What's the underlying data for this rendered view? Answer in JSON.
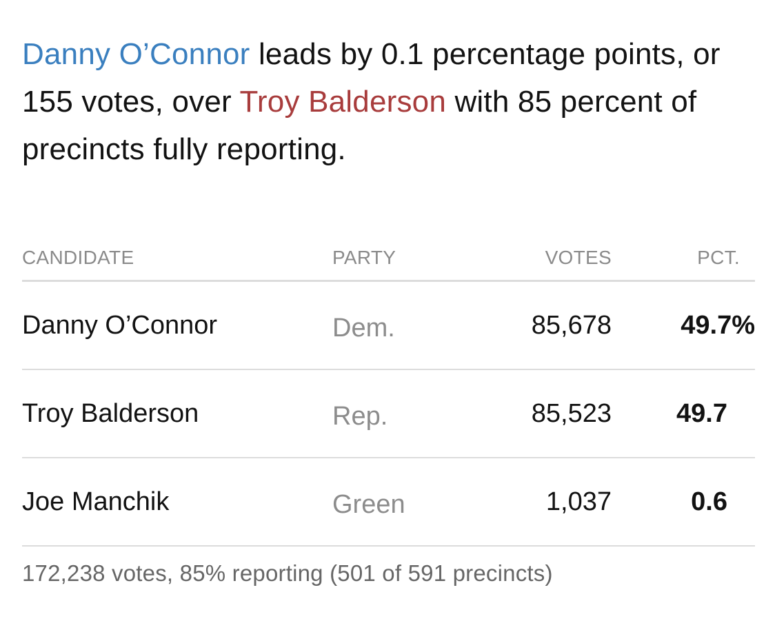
{
  "headline": {
    "leader_name": "Danny O’Connor",
    "text_1": " leads by 0.1 percentage points, or 155 votes, over ",
    "trailer_name": "Troy Balderson",
    "text_2": " with 85 percent of precincts fully reporting."
  },
  "table": {
    "headers": {
      "candidate": "CANDIDATE",
      "party": "PARTY",
      "votes": "VOTES",
      "pct": "PCT."
    },
    "rows": [
      {
        "candidate": "Danny O’Connor",
        "party": "Dem.",
        "votes": "85,678",
        "pct": "49.7%"
      },
      {
        "candidate": "Troy Balderson",
        "party": "Rep.",
        "votes": "85,523",
        "pct": "49.7"
      },
      {
        "candidate": "Joe Manchik",
        "party": "Green",
        "votes": "1,037",
        "pct": "0.6"
      }
    ]
  },
  "footer": "172,238 votes, 85% reporting (501 of 591 precincts)",
  "colors": {
    "dem": "#3a7fbf",
    "rep": "#a83c3c"
  }
}
